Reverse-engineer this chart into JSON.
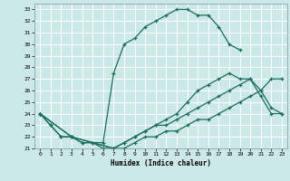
{
  "xlabel": "Humidex (Indice chaleur)",
  "background_color": "#cde8e8",
  "grid_color": "#b0d4d4",
  "line_color": "#1a6e5a",
  "xlim": [
    -0.5,
    23.5
  ],
  "ylim": [
    21,
    33.5
  ],
  "xticks": [
    0,
    1,
    2,
    3,
    4,
    5,
    6,
    7,
    8,
    9,
    10,
    11,
    12,
    13,
    14,
    15,
    16,
    17,
    18,
    19,
    20,
    21,
    22,
    23
  ],
  "yticks": [
    21,
    22,
    23,
    24,
    25,
    26,
    27,
    28,
    29,
    30,
    31,
    32,
    33
  ],
  "lines": [
    {
      "x": [
        0,
        1,
        2,
        3,
        4,
        5,
        6,
        7,
        8,
        9,
        10,
        11,
        12,
        13,
        14,
        15,
        16,
        17,
        18,
        19
      ],
      "y": [
        24,
        23,
        22,
        22,
        21.5,
        21.5,
        21.5,
        27.5,
        30,
        30.5,
        31.5,
        32,
        32.5,
        33,
        33,
        32.5,
        32.5,
        31.5,
        30,
        29.5
      ]
    },
    {
      "x": [
        0,
        1,
        2,
        3,
        4,
        5,
        6,
        7,
        8,
        9,
        10,
        11,
        12,
        13,
        14,
        15,
        16,
        17,
        18,
        19,
        20,
        21,
        22,
        23
      ],
      "y": [
        24,
        23,
        22,
        22,
        21.5,
        21.5,
        21,
        21,
        21.5,
        22,
        22.5,
        23,
        23.5,
        24,
        25,
        26,
        26.5,
        27,
        27.5,
        27,
        27,
        25.5,
        24,
        24
      ]
    },
    {
      "x": [
        0,
        3,
        7,
        8,
        9,
        10,
        11,
        12,
        13,
        14,
        15,
        16,
        17,
        18,
        19,
        20,
        21,
        22,
        23
      ],
      "y": [
        24,
        22,
        21,
        21.5,
        22,
        22.5,
        23,
        23,
        23.5,
        24,
        24.5,
        25,
        25.5,
        26,
        26.5,
        27,
        26,
        24.5,
        24
      ]
    },
    {
      "x": [
        0,
        3,
        7,
        8,
        9,
        10,
        11,
        12,
        13,
        14,
        15,
        16,
        17,
        18,
        19,
        20,
        21,
        22,
        23
      ],
      "y": [
        24,
        22,
        21,
        21,
        21.5,
        22,
        22,
        22.5,
        22.5,
        23,
        23.5,
        23.5,
        24,
        24.5,
        25,
        25.5,
        26,
        27,
        27
      ]
    }
  ]
}
